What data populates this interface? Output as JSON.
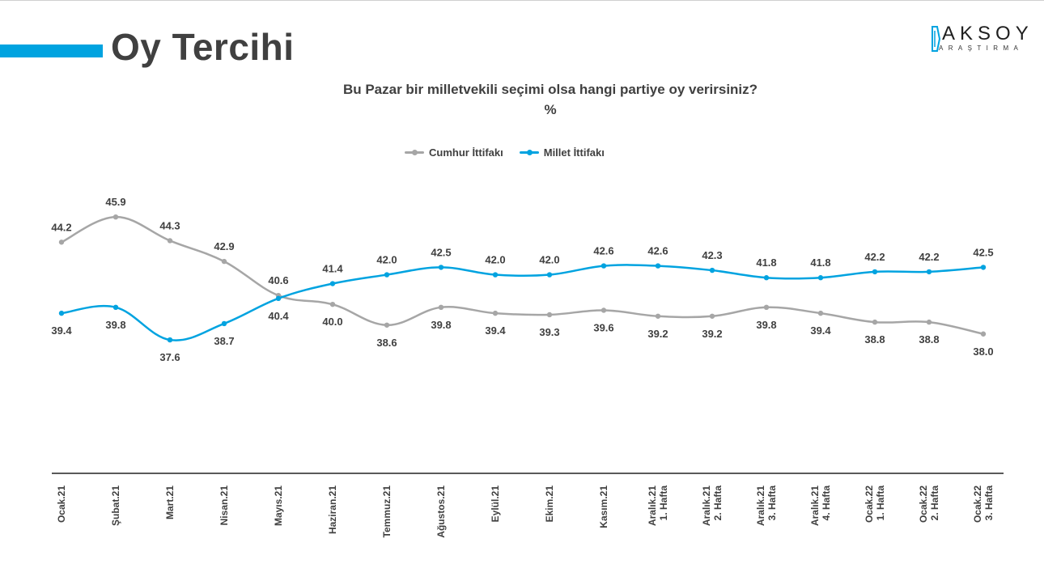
{
  "header": {
    "title": "Oy Tercihi",
    "logo_main": "AKSOY",
    "logo_sub": "ARAŞTIRMA"
  },
  "colors": {
    "accent": "#00a3e0",
    "cumhur": "#a6a6a6",
    "millet": "#00a3e0",
    "text": "#404040"
  },
  "chart_data": {
    "type": "line",
    "title": "Bu Pazar bir milletvekili seçimi olsa hangi partiye oy verirsiniz?",
    "subtitle": "%",
    "legend_position": "top-center",
    "grid": false,
    "categories": [
      "Ocak.21",
      "Şubat.21",
      "Mart.21",
      "Nisan.21",
      "Mayıs.21",
      "Haziran.21",
      "Temmuz.21",
      "Ağustos.21",
      "Eylül.21",
      "Ekim.21",
      "Kasım.21",
      "Aralık.21\n1. Hafta",
      "Aralık.21\n2. Hafta",
      "Aralık.21\n3. Hafta",
      "Aralık.21\n4. Hafta",
      "Ocak.22\n1. Hafta",
      "Ocak.22\n2. Hafta",
      "Ocak.22\n3. Hafta"
    ],
    "series": [
      {
        "name": "Cumhur İttifakı",
        "values": [
          44.2,
          45.9,
          44.3,
          42.9,
          40.6,
          40.0,
          38.6,
          39.8,
          39.4,
          39.3,
          39.6,
          39.2,
          39.2,
          39.8,
          39.4,
          38.8,
          38.8,
          38.0
        ]
      },
      {
        "name": "Millet İttifakı",
        "values": [
          39.4,
          39.8,
          37.6,
          38.7,
          40.4,
          41.4,
          42.0,
          42.5,
          42.0,
          42.0,
          42.6,
          42.6,
          42.3,
          41.8,
          41.8,
          42.2,
          42.2,
          42.5
        ]
      }
    ]
  }
}
